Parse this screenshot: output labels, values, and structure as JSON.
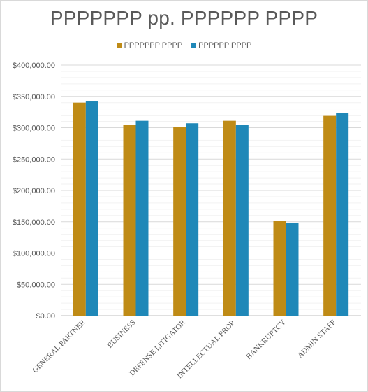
{
  "chart_data": {
    "type": "bar",
    "title": "PPPPPPP pp. PPPPPP PPPP",
    "categories": [
      "GENERAL PARTNER",
      "BUSINESS",
      "DEFENSE LITIGATOR",
      "INTELLECTUAL PROP.",
      "BANKRUPTCY",
      "ADMIN STAFF"
    ],
    "series": [
      {
        "name": "PPPPPPP PPPP",
        "color": "#bf8b16",
        "values": [
          340000,
          305000,
          301000,
          311000,
          151000,
          320000
        ]
      },
      {
        "name": "PPPPPP PPPP",
        "color": "#1f88b8",
        "values": [
          343000,
          311000,
          307000,
          304000,
          148000,
          323000
        ]
      }
    ],
    "ylim": [
      0,
      400000
    ],
    "yticks": [
      "$0.00",
      "$50,000.00",
      "$100,000.00",
      "$150,000.00",
      "$200,000.00",
      "$250,000.00",
      "$300,000.00",
      "$350,000.00",
      "$400,000.00"
    ],
    "ytick_values": [
      0,
      50000,
      100000,
      150000,
      200000,
      250000,
      300000,
      350000,
      400000
    ],
    "grid": true,
    "legend_position": "top"
  }
}
